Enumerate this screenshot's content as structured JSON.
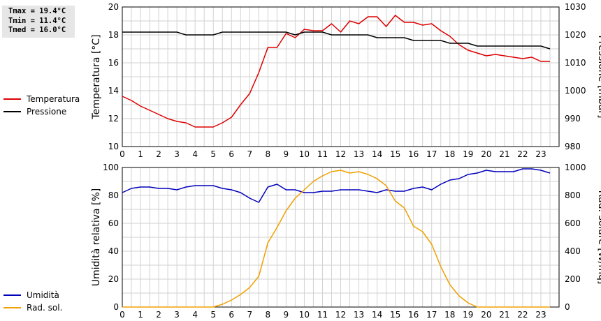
{
  "stats": {
    "tmax": "Tmax = 19.4°C",
    "tmin": "Tmin = 11.4°C",
    "tmed": "Tmed = 16.0°C"
  },
  "chart_data": [
    {
      "type": "line",
      "ylabel": "Temperatura [°C]",
      "y2label": "Pressione [mbar]",
      "xlim": [
        0,
        24
      ],
      "ylim": [
        10,
        20
      ],
      "y2lim": [
        980,
        1030
      ],
      "x_ticks": [
        "0",
        "1",
        "2",
        "3",
        "4",
        "5",
        "6",
        "7",
        "8",
        "9",
        "10",
        "11",
        "12",
        "13",
        "14",
        "15",
        "16",
        "17",
        "18",
        "19",
        "20",
        "21",
        "22",
        "23"
      ],
      "y_ticks": [
        "10",
        "12",
        "14",
        "16",
        "18",
        "20"
      ],
      "y2_ticks": [
        "980",
        "990",
        "1000",
        "1010",
        "1020",
        "1030"
      ],
      "grid": true,
      "legend_placement": "left",
      "series": [
        {
          "name": "Temperatura",
          "color": "#dd0000",
          "axis": "left",
          "x": [
            0,
            0.5,
            1,
            1.5,
            2,
            2.5,
            3,
            3.5,
            4,
            4.5,
            5,
            5.5,
            6,
            6.5,
            7,
            7.5,
            8,
            8.5,
            9,
            9.5,
            10,
            10.5,
            11,
            11.5,
            12,
            12.5,
            13,
            13.5,
            14,
            14.5,
            15,
            15.5,
            16,
            16.5,
            17,
            17.5,
            18,
            18.5,
            19,
            19.5,
            20,
            20.5,
            21,
            21.5,
            22,
            22.5,
            23,
            23.5
          ],
          "y": [
            13.6,
            13.3,
            12.9,
            12.6,
            12.3,
            12.0,
            11.8,
            11.7,
            11.4,
            11.4,
            11.4,
            11.7,
            12.1,
            13.0,
            13.8,
            15.3,
            17.1,
            17.1,
            18.1,
            17.8,
            18.4,
            18.3,
            18.3,
            18.8,
            18.2,
            19.0,
            18.8,
            19.3,
            19.3,
            18.6,
            19.4,
            18.9,
            18.9,
            18.7,
            18.8,
            18.3,
            17.9,
            17.3,
            16.9,
            16.7,
            16.5,
            16.6,
            16.5,
            16.4,
            16.3,
            16.4,
            16.1,
            16.1
          ]
        },
        {
          "name": "Pressione",
          "color": "#000000",
          "axis": "right",
          "x": [
            0,
            0.5,
            1,
            1.5,
            2,
            2.5,
            3,
            3.5,
            4,
            4.5,
            5,
            5.5,
            6,
            6.5,
            7,
            7.5,
            8,
            8.5,
            9,
            9.5,
            10,
            10.5,
            11,
            11.5,
            12,
            12.5,
            13,
            13.5,
            14,
            14.5,
            15,
            15.5,
            16,
            16.5,
            17,
            17.5,
            18,
            18.5,
            19,
            19.5,
            20,
            20.5,
            21,
            21.5,
            22,
            22.5,
            23,
            23.5
          ],
          "y": [
            1021,
            1021,
            1021,
            1021,
            1021,
            1021,
            1021,
            1020,
            1020,
            1020,
            1020,
            1021,
            1021,
            1021,
            1021,
            1021,
            1021,
            1021,
            1021,
            1020,
            1021,
            1021,
            1021,
            1020,
            1020,
            1020,
            1020,
            1020,
            1019,
            1019,
            1019,
            1019,
            1018,
            1018,
            1018,
            1018,
            1017,
            1017,
            1017,
            1016,
            1016,
            1016,
            1016,
            1016,
            1016,
            1016,
            1016,
            1015
          ]
        }
      ]
    },
    {
      "type": "line",
      "ylabel": "Umidità relativa [%]",
      "y2label": "Rad. solare [W/mq]",
      "xlim": [
        0,
        24
      ],
      "ylim": [
        0,
        100
      ],
      "y2lim": [
        0,
        1000
      ],
      "x_ticks": [
        "0",
        "1",
        "2",
        "3",
        "4",
        "5",
        "6",
        "7",
        "8",
        "9",
        "10",
        "11",
        "12",
        "13",
        "14",
        "15",
        "16",
        "17",
        "18",
        "19",
        "20",
        "21",
        "22",
        "23"
      ],
      "y_ticks": [
        "0",
        "20",
        "40",
        "60",
        "80",
        "100"
      ],
      "y2_ticks": [
        "0",
        "200",
        "400",
        "600",
        "800",
        "1000"
      ],
      "grid": true,
      "legend_placement": "left",
      "series": [
        {
          "name": "Umidità",
          "color": "#0000bb",
          "axis": "left",
          "x": [
            0,
            0.5,
            1,
            1.5,
            2,
            2.5,
            3,
            3.5,
            4,
            4.5,
            5,
            5.5,
            6,
            6.5,
            7,
            7.5,
            8,
            8.5,
            9,
            9.5,
            10,
            10.5,
            11,
            11.5,
            12,
            12.5,
            13,
            13.5,
            14,
            14.5,
            15,
            15.5,
            16,
            16.5,
            17,
            17.5,
            18,
            18.5,
            19,
            19.5,
            20,
            20.5,
            21,
            21.5,
            22,
            22.5,
            23,
            23.5
          ],
          "y": [
            82,
            85,
            86,
            86,
            85,
            85,
            84,
            86,
            87,
            87,
            87,
            85,
            84,
            82,
            78,
            75,
            86,
            88,
            84,
            84,
            82,
            82,
            83,
            83,
            84,
            84,
            84,
            83,
            82,
            84,
            83,
            83,
            85,
            86,
            84,
            88,
            91,
            92,
            95,
            96,
            98,
            97,
            97,
            97,
            99,
            99,
            98,
            96
          ]
        },
        {
          "name": "Rad. sol.",
          "color": "#f0a000",
          "axis": "right",
          "x": [
            0,
            0.5,
            1,
            1.5,
            2,
            2.5,
            3,
            3.5,
            4,
            4.5,
            5,
            5.5,
            6,
            6.5,
            7,
            7.5,
            8,
            8.5,
            9,
            9.5,
            10,
            10.5,
            11,
            11.5,
            12,
            12.5,
            13,
            13.5,
            14,
            14.5,
            15,
            15.5,
            16,
            16.5,
            17,
            17.5,
            18,
            18.5,
            19,
            19.5,
            20,
            20.5,
            21,
            21.5,
            22,
            22.5,
            23,
            23.5
          ],
          "y": [
            0,
            0,
            0,
            0,
            0,
            0,
            0,
            0,
            0,
            0,
            0,
            20,
            50,
            90,
            140,
            220,
            460,
            570,
            690,
            780,
            840,
            900,
            940,
            970,
            980,
            960,
            970,
            950,
            920,
            870,
            760,
            710,
            580,
            540,
            450,
            290,
            160,
            80,
            30,
            0,
            0,
            0,
            0,
            0,
            0,
            0,
            0,
            0
          ]
        }
      ]
    }
  ]
}
